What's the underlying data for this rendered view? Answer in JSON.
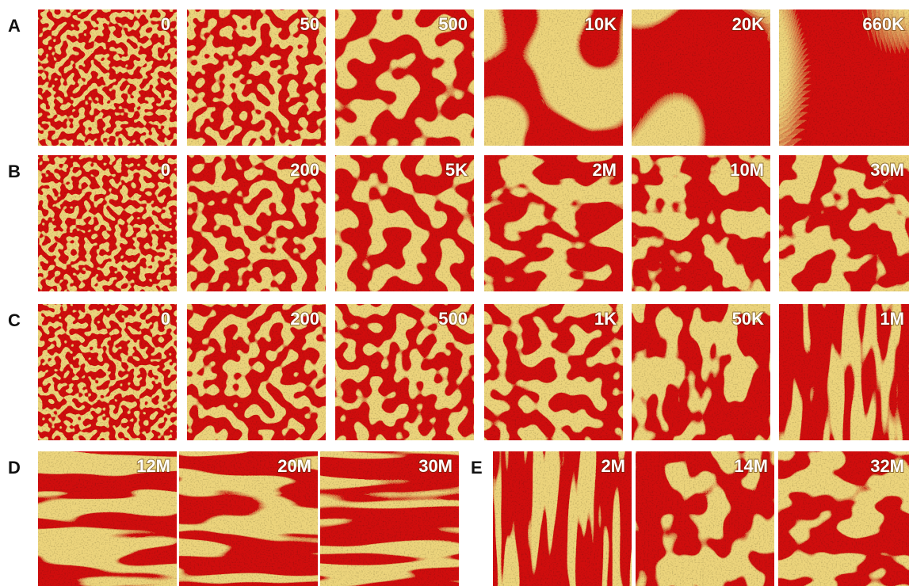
{
  "rows": [
    {
      "label": "A",
      "panels": [
        "0",
        "50",
        "500",
        "10K",
        "20K",
        "660K"
      ]
    },
    {
      "label": "B",
      "panels": [
        "0",
        "200",
        "5K",
        "2M",
        "10M",
        "30M"
      ]
    },
    {
      "label": "C",
      "panels": [
        "0",
        "200",
        "500",
        "1K",
        "50K",
        "1M"
      ]
    },
    {
      "label": "D",
      "panels": [
        "12M",
        "20M",
        "30M"
      ]
    },
    {
      "label": "E",
      "panels": [
        "2M",
        "14M",
        "32M"
      ]
    }
  ]
}
